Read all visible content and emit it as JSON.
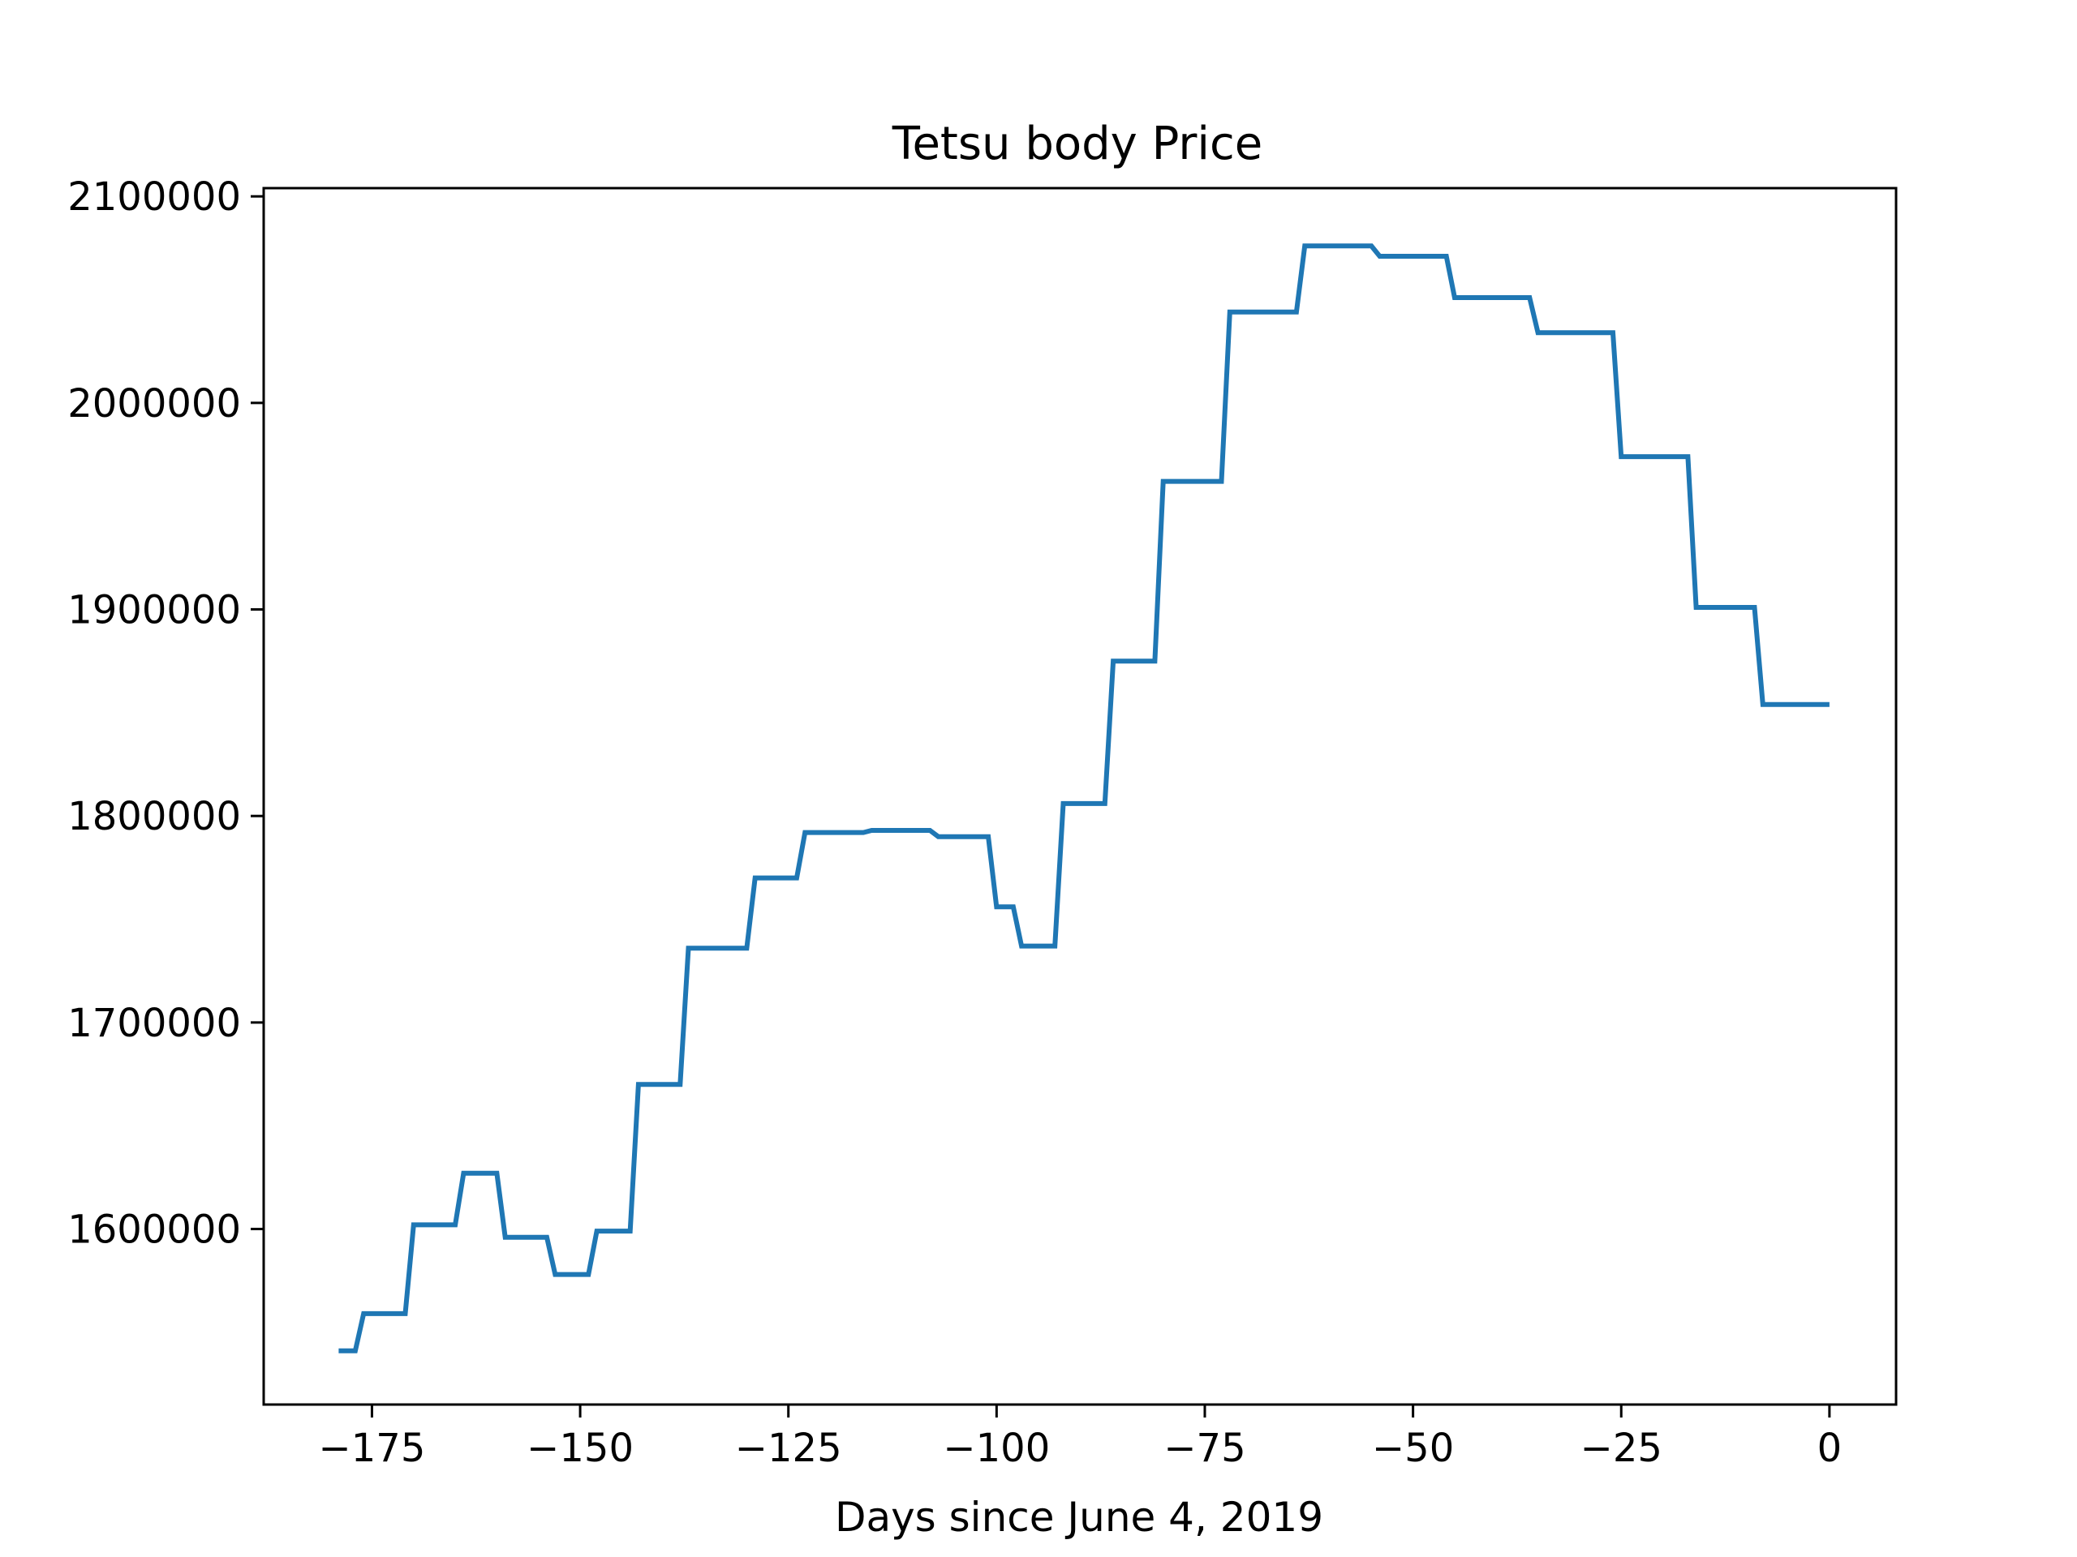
{
  "chart_data": {
    "type": "line",
    "title": "Tetsu body Price",
    "xlabel": "Days since June 4, 2019",
    "ylabel": "",
    "xlim": [
      -188,
      8
    ],
    "ylim": [
      1515000,
      2104000
    ],
    "x_ticks": [
      -175,
      -150,
      -125,
      -100,
      -75,
      -50,
      -25,
      0
    ],
    "x_tick_labels": [
      "−175",
      "−150",
      "−125",
      "−100",
      "−75",
      "−50",
      "−25",
      "0"
    ],
    "y_ticks": [
      1600000,
      1700000,
      1800000,
      1900000,
      2000000,
      2100000
    ],
    "y_tick_labels": [
      "1600000",
      "1700000",
      "1800000",
      "1900000",
      "2000000",
      "2100000"
    ],
    "grid": false,
    "series": [
      {
        "color": "#1f77b4",
        "x": [
          -179,
          -177,
          -176,
          -171,
          -170,
          -165,
          -164,
          -160,
          -159,
          -154,
          -153,
          -149,
          -148,
          -144,
          -143,
          -138,
          -137,
          -130,
          -129,
          -124,
          -123,
          -116,
          -115,
          -108,
          -107,
          -101,
          -100,
          -98,
          -97,
          -93,
          -92,
          -87,
          -86,
          -81,
          -80,
          -73,
          -72,
          -64,
          -63,
          -55,
          -54,
          -46,
          -45,
          -36,
          -35,
          -26,
          -25,
          -17,
          -16,
          -9,
          -8,
          0
        ],
        "y": [
          1541000,
          1541000,
          1559000,
          1559000,
          1602000,
          1602000,
          1627000,
          1627000,
          1596000,
          1596000,
          1578000,
          1578000,
          1599000,
          1599000,
          1670000,
          1670000,
          1736000,
          1736000,
          1770000,
          1770000,
          1792000,
          1792000,
          1793000,
          1793000,
          1790000,
          1790000,
          1756000,
          1756000,
          1737000,
          1737000,
          1806000,
          1806000,
          1875000,
          1875000,
          1962000,
          1962000,
          2044000,
          2044000,
          2076000,
          2076000,
          2071000,
          2071000,
          2051000,
          2051000,
          2034000,
          2034000,
          1974000,
          1974000,
          1901000,
          1901000,
          1854000,
          1854000
        ]
      }
    ]
  }
}
